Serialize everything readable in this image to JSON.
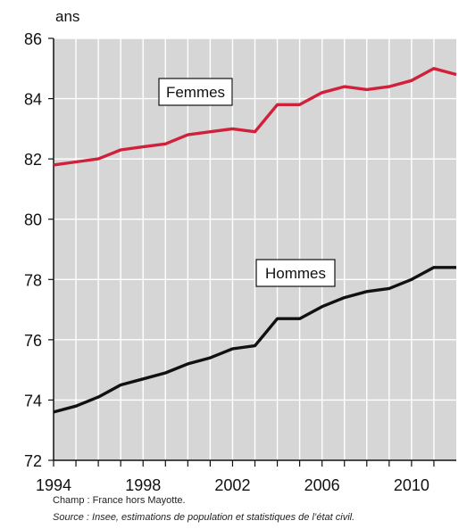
{
  "chart_data": {
    "type": "line",
    "ylabel": "ans",
    "ylim": [
      72,
      86
    ],
    "yticks": [
      72,
      74,
      76,
      78,
      80,
      82,
      84,
      86
    ],
    "xlim": [
      1994,
      2012
    ],
    "xticks": [
      1994,
      1998,
      2002,
      2006,
      2010
    ],
    "grid": true,
    "background_color": "#d6d6d6",
    "grid_color": "#ffffff",
    "x": [
      1994,
      1995,
      1996,
      1997,
      1998,
      1999,
      2000,
      2001,
      2002,
      2003,
      2004,
      2005,
      2006,
      2007,
      2008,
      2009,
      2010,
      2011,
      2012
    ],
    "series": [
      {
        "name": "Femmes",
        "color": "#d0203a",
        "values": [
          81.8,
          81.9,
          82.0,
          82.3,
          82.4,
          82.5,
          82.8,
          82.9,
          83.0,
          82.9,
          83.8,
          83.8,
          84.2,
          84.4,
          84.3,
          84.4,
          84.6,
          85.0,
          84.8
        ]
      },
      {
        "name": "Hommes",
        "color": "#111111",
        "values": [
          73.6,
          73.8,
          74.1,
          74.5,
          74.7,
          74.9,
          75.2,
          75.4,
          75.7,
          75.8,
          76.7,
          76.7,
          77.1,
          77.4,
          77.6,
          77.7,
          78.0,
          78.4,
          78.4
        ]
      }
    ]
  },
  "notes": {
    "champ": "Champ : France hors Mayotte.",
    "source": "Source : Insee, estimations de population et statistiques de l’état civil."
  }
}
